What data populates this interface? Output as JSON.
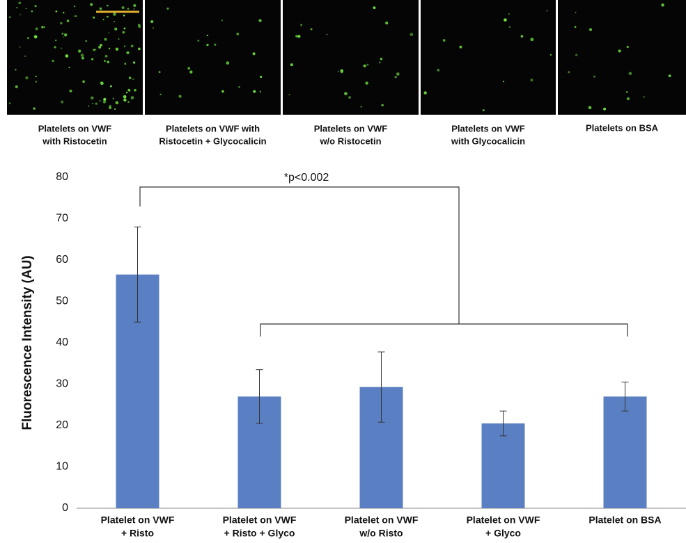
{
  "panels": [
    {
      "label": [
        "Platelets on VWF",
        "with Ristocetin"
      ]
    },
    {
      "label": [
        "Platelets on VWF with",
        "Ristocetin + Glycocalicin"
      ]
    },
    {
      "label": [
        "Platelets on VWF",
        "w/o Ristocetin"
      ]
    },
    {
      "label": [
        "Platelets on VWF",
        "with Glycocalicin"
      ]
    },
    {
      "label": [
        "Platelets on BSA"
      ]
    }
  ],
  "chart_data": {
    "type": "bar",
    "y_label": "Fluorescence Intensity (AU)",
    "annotation": "*p<0.002",
    "categories": [
      [
        "Platelet on VWF",
        "+ Risto"
      ],
      [
        "Platelet on VWF",
        "+ Risto + Glyco"
      ],
      [
        "Platelet on VWF",
        "w/o Risto"
      ],
      [
        "Platelet on VWF",
        "+ Glyco"
      ],
      [
        "Platelet on BSA"
      ]
    ],
    "values": [
      56.5,
      27,
      29.3,
      20.5,
      27
    ],
    "errors": [
      11.5,
      6.5,
      8.5,
      3,
      3.5
    ],
    "color": "#5b7fc3",
    "ylim": [
      0,
      80
    ],
    "yticks": [
      0,
      10,
      20,
      30,
      40,
      50,
      60,
      70,
      80
    ],
    "grid": false
  }
}
